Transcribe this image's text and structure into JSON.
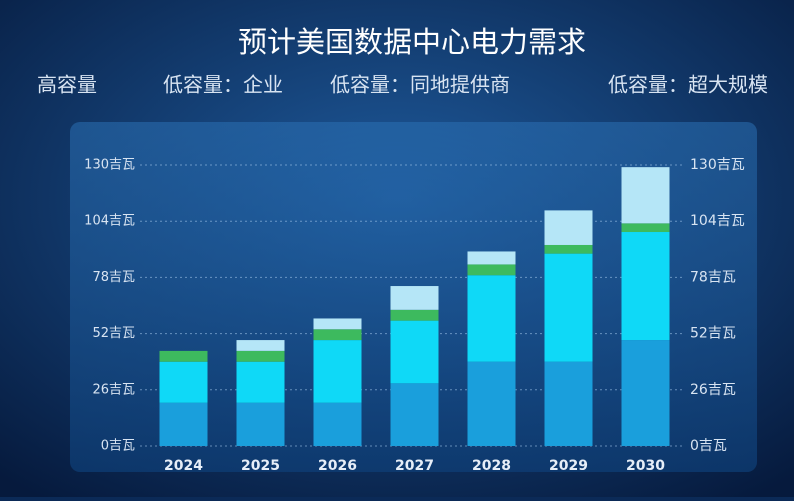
{
  "chart_data": {
    "type": "stacked-bar",
    "title": "预计美国数据中心电力需求",
    "categories": [
      "2024",
      "2025",
      "2026",
      "2027",
      "2028",
      "2029",
      "2030"
    ],
    "series": [
      {
        "name": "高容量",
        "color": "#1a9fdc",
        "values": [
          20,
          20,
          20,
          29,
          39,
          39,
          49
        ]
      },
      {
        "name": "低容量：企业",
        "color": "#0fd9f7",
        "values": [
          19,
          19,
          29,
          29,
          40,
          50,
          50
        ]
      },
      {
        "name": "低容量：同地提供商",
        "color": "#3dba5e",
        "values": [
          5,
          5,
          5,
          5,
          5,
          4,
          4
        ]
      },
      {
        "name": "低容量：超大规模",
        "color": "#b5e6f7",
        "values": [
          0,
          5,
          5,
          11,
          6,
          16,
          26
        ]
      }
    ],
    "ylim": [
      0,
      130
    ],
    "yticks": [
      {
        "value": 0,
        "label": "0吉瓦"
      },
      {
        "value": 26,
        "label": "26吉瓦"
      },
      {
        "value": 52,
        "label": "52吉瓦"
      },
      {
        "value": 78,
        "label": "78吉瓦"
      },
      {
        "value": 104,
        "label": "104吉瓦"
      },
      {
        "value": 130,
        "label": "130吉瓦"
      }
    ],
    "grid": true
  }
}
